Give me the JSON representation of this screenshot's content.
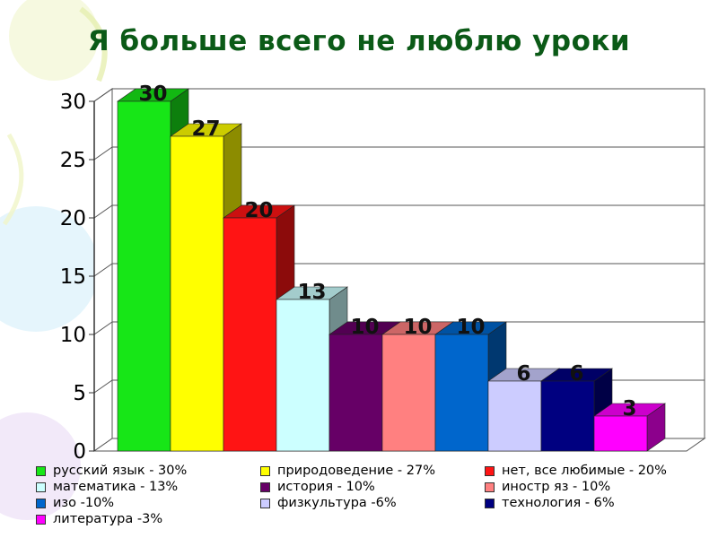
{
  "title": "Я больше всего не люблю уроки",
  "chart_data": {
    "type": "bar",
    "title": "Я больше всего не люблю уроки",
    "xlabel": "",
    "ylabel": "",
    "ylim": [
      0,
      30
    ],
    "yticks": [
      "0",
      "5",
      "10",
      "15",
      "20",
      "25",
      "30"
    ],
    "grid": true,
    "legend_position": "bottom",
    "series": [
      {
        "name": "русский язык - 30%",
        "value": 30,
        "label": "30",
        "color": "#17e617"
      },
      {
        "name": "природоведение - 27%",
        "value": 27,
        "label": "27",
        "color": "#ffff00"
      },
      {
        "name": "нет, все любимые - 20%",
        "value": 20,
        "label": "20",
        "color": "#ff1414"
      },
      {
        "name": "математика - 13%",
        "value": 13,
        "label": "13",
        "color": "#ccffff"
      },
      {
        "name": "история - 10%",
        "value": 10,
        "label": "10",
        "color": "#660066"
      },
      {
        "name": "иностр яз - 10%",
        "value": 10,
        "label": "10",
        "color": "#ff8080"
      },
      {
        "name": "изо -10%",
        "value": 10,
        "label": "10",
        "color": "#0066cc"
      },
      {
        "name": "физкультура -6%",
        "value": 6,
        "label": "6",
        "color": "#ccccff"
      },
      {
        "name": "технология - 6%",
        "value": 6,
        "label": "6",
        "color": "#000080"
      },
      {
        "name": "литература -3%",
        "value": 3,
        "label": "3",
        "color": "#ff00ff"
      }
    ]
  }
}
